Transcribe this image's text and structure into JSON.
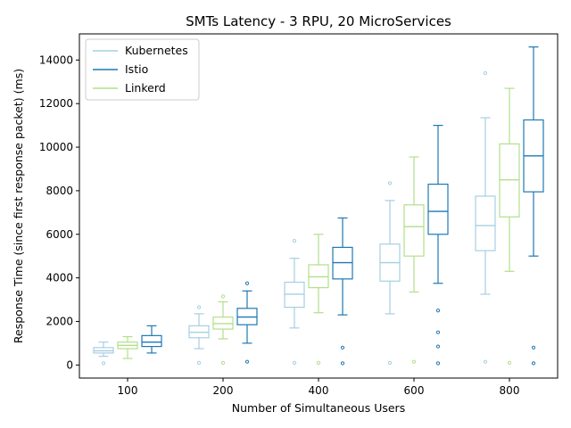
{
  "chart_data": {
    "type": "box",
    "title": "SMTs Latency - 3 RPU, 20 MicroServices",
    "xlabel": "Number of Simultaneous Users",
    "ylabel": "Response Time (since first response packet) (ms)",
    "categories": [
      "100",
      "200",
      "400",
      "600",
      "800"
    ],
    "ylim": [
      -600,
      15200
    ],
    "yticks": [
      0,
      2000,
      4000,
      6000,
      8000,
      10000,
      12000,
      14000
    ],
    "legend_position": "top-left",
    "grid": false,
    "series": [
      {
        "name": "Kubernetes",
        "color": "#a6cee3",
        "boxes": [
          {
            "whisker_low": 400,
            "q1": 550,
            "median": 650,
            "q3": 800,
            "whisker_high": 1050,
            "outliers": [
              80
            ]
          },
          {
            "whisker_low": 750,
            "q1": 1250,
            "median": 1500,
            "q3": 1800,
            "whisker_high": 2350,
            "outliers": [
              100,
              2650
            ]
          },
          {
            "whisker_low": 1700,
            "q1": 2650,
            "median": 3250,
            "q3": 3800,
            "whisker_high": 4900,
            "outliers": [
              100,
              5700
            ]
          },
          {
            "whisker_low": 2350,
            "q1": 3850,
            "median": 4700,
            "q3": 5550,
            "whisker_high": 7550,
            "outliers": [
              100,
              8350
            ]
          },
          {
            "whisker_low": 3250,
            "q1": 5250,
            "median": 6400,
            "q3": 7750,
            "whisker_high": 11350,
            "outliers": [
              150,
              13400
            ]
          }
        ]
      },
      {
        "name": "Istio",
        "color": "#1f78b4",
        "boxes": [
          {
            "whisker_low": 550,
            "q1": 850,
            "median": 1050,
            "q3": 1350,
            "whisker_high": 1800,
            "outliers": []
          },
          {
            "whisker_low": 1000,
            "q1": 1850,
            "median": 2200,
            "q3": 2600,
            "whisker_high": 3400,
            "outliers": [
              150,
              3750
            ]
          },
          {
            "whisker_low": 2300,
            "q1": 3950,
            "median": 4700,
            "q3": 5400,
            "whisker_high": 6750,
            "outliers": [
              80,
              800
            ]
          },
          {
            "whisker_low": 3750,
            "q1": 6000,
            "median": 7050,
            "q3": 8300,
            "whisker_high": 11000,
            "outliers": [
              80,
              850,
              1500,
              2500
            ]
          },
          {
            "whisker_low": 5000,
            "q1": 7950,
            "median": 9600,
            "q3": 11250,
            "whisker_high": 14600,
            "outliers": [
              80,
              800
            ]
          }
        ]
      },
      {
        "name": "Linkerd",
        "color": "#b2df8a",
        "boxes": [
          {
            "whisker_low": 300,
            "q1": 750,
            "median": 900,
            "q3": 1050,
            "whisker_high": 1300,
            "outliers": []
          },
          {
            "whisker_low": 1200,
            "q1": 1650,
            "median": 1900,
            "q3": 2200,
            "whisker_high": 2900,
            "outliers": [
              100,
              3150
            ]
          },
          {
            "whisker_low": 2400,
            "q1": 3550,
            "median": 4050,
            "q3": 4600,
            "whisker_high": 6000,
            "outliers": [
              100
            ]
          },
          {
            "whisker_low": 3350,
            "q1": 5000,
            "median": 6350,
            "q3": 7350,
            "whisker_high": 9550,
            "outliers": [
              150
            ]
          },
          {
            "whisker_low": 4300,
            "q1": 6800,
            "median": 8500,
            "q3": 10150,
            "whisker_high": 12700,
            "outliers": [
              100
            ]
          }
        ]
      }
    ]
  }
}
